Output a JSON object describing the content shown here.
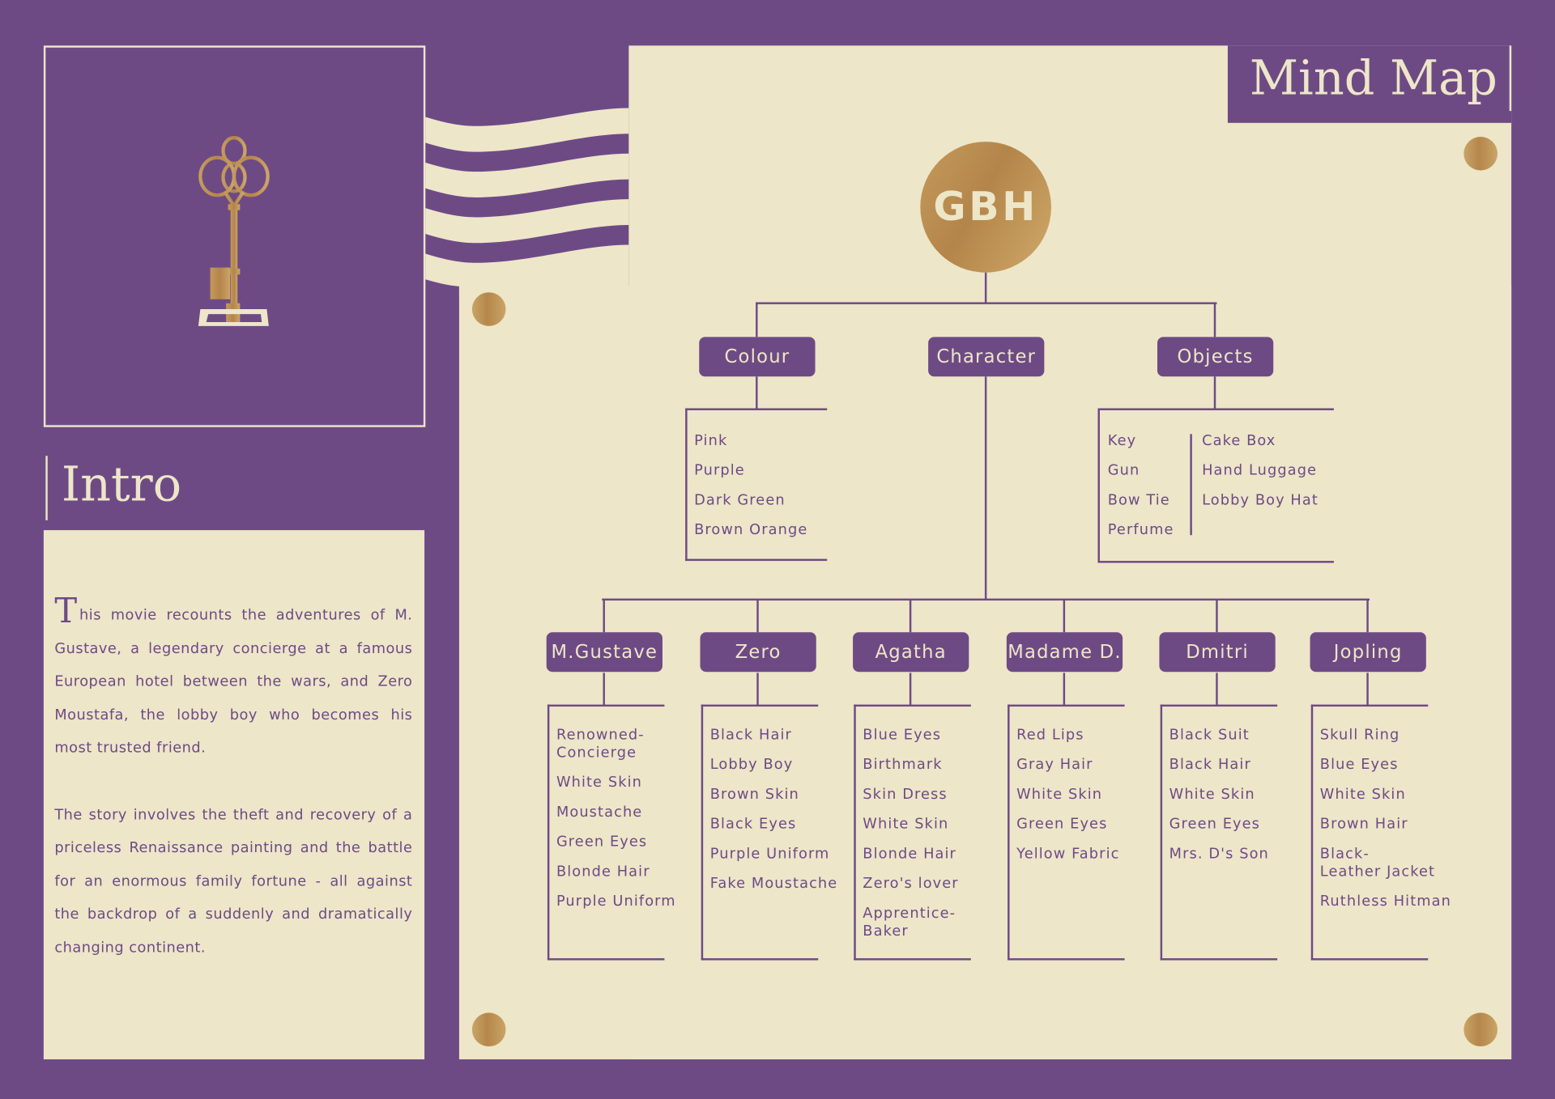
{
  "intro": {
    "title": "Intro",
    "drop_cap": "T",
    "paragraph1_rest": "his movie recounts the adventures of M. Gustave, a legendary concierge at a famous European hotel between the wars, and Zero Moustafa, the lobby boy who becomes his most trusted friend.",
    "paragraph2": "The story involves the theft and recovery of a priceless Renaissance painting and the battle for an enormous family fortune - all against the backdrop of a suddenly and dramatically changing continent."
  },
  "key_icon": "skeleton-key-icon",
  "mind_map": {
    "title": "Mind Map",
    "root": "GBH",
    "colour": {
      "label": "Colour",
      "items": [
        "Pink",
        "Purple",
        "Dark Green",
        "Brown Orange"
      ]
    },
    "character": {
      "label": "Character",
      "children": [
        {
          "label": "M.Gustave",
          "items": [
            "Renowned-\nConcierge",
            "White Skin",
            "Moustache",
            "Green Eyes",
            "Blonde Hair",
            "Purple Uniform"
          ]
        },
        {
          "label": "Zero",
          "items": [
            "Black Hair",
            "Lobby Boy",
            "Brown Skin",
            "Black Eyes",
            "Purple Uniform",
            "Fake Moustache"
          ]
        },
        {
          "label": "Agatha",
          "items": [
            "Blue Eyes",
            "Birthmark",
            "Skin Dress",
            "White Skin",
            "Blonde Hair",
            "Zero's lover",
            "Apprentice-\nBaker"
          ]
        },
        {
          "label": "Madame D.",
          "items": [
            "Red Lips",
            "Gray Hair",
            "White Skin",
            "Green Eyes",
            "Yellow Fabric"
          ]
        },
        {
          "label": "Dmitri",
          "items": [
            "Black Suit",
            "Black Hair",
            "White Skin",
            "Green Eyes",
            "Mrs. D's Son"
          ]
        },
        {
          "label": "Jopling",
          "items": [
            "Skull Ring",
            "Blue Eyes",
            "White Skin",
            "Brown Hair",
            "Black-\nLeather Jacket",
            "Ruthless Hitman"
          ]
        }
      ]
    },
    "objects": {
      "label": "Objects",
      "items_col1": [
        "Key",
        "Gun",
        "Bow Tie",
        "Perfume"
      ],
      "items_col2": [
        "Cake Box",
        "Hand Luggage",
        "Lobby Boy Hat"
      ]
    }
  },
  "colors": {
    "purple": "#6e4a85",
    "cream": "#ede6c9",
    "gold": "#b5874a"
  }
}
